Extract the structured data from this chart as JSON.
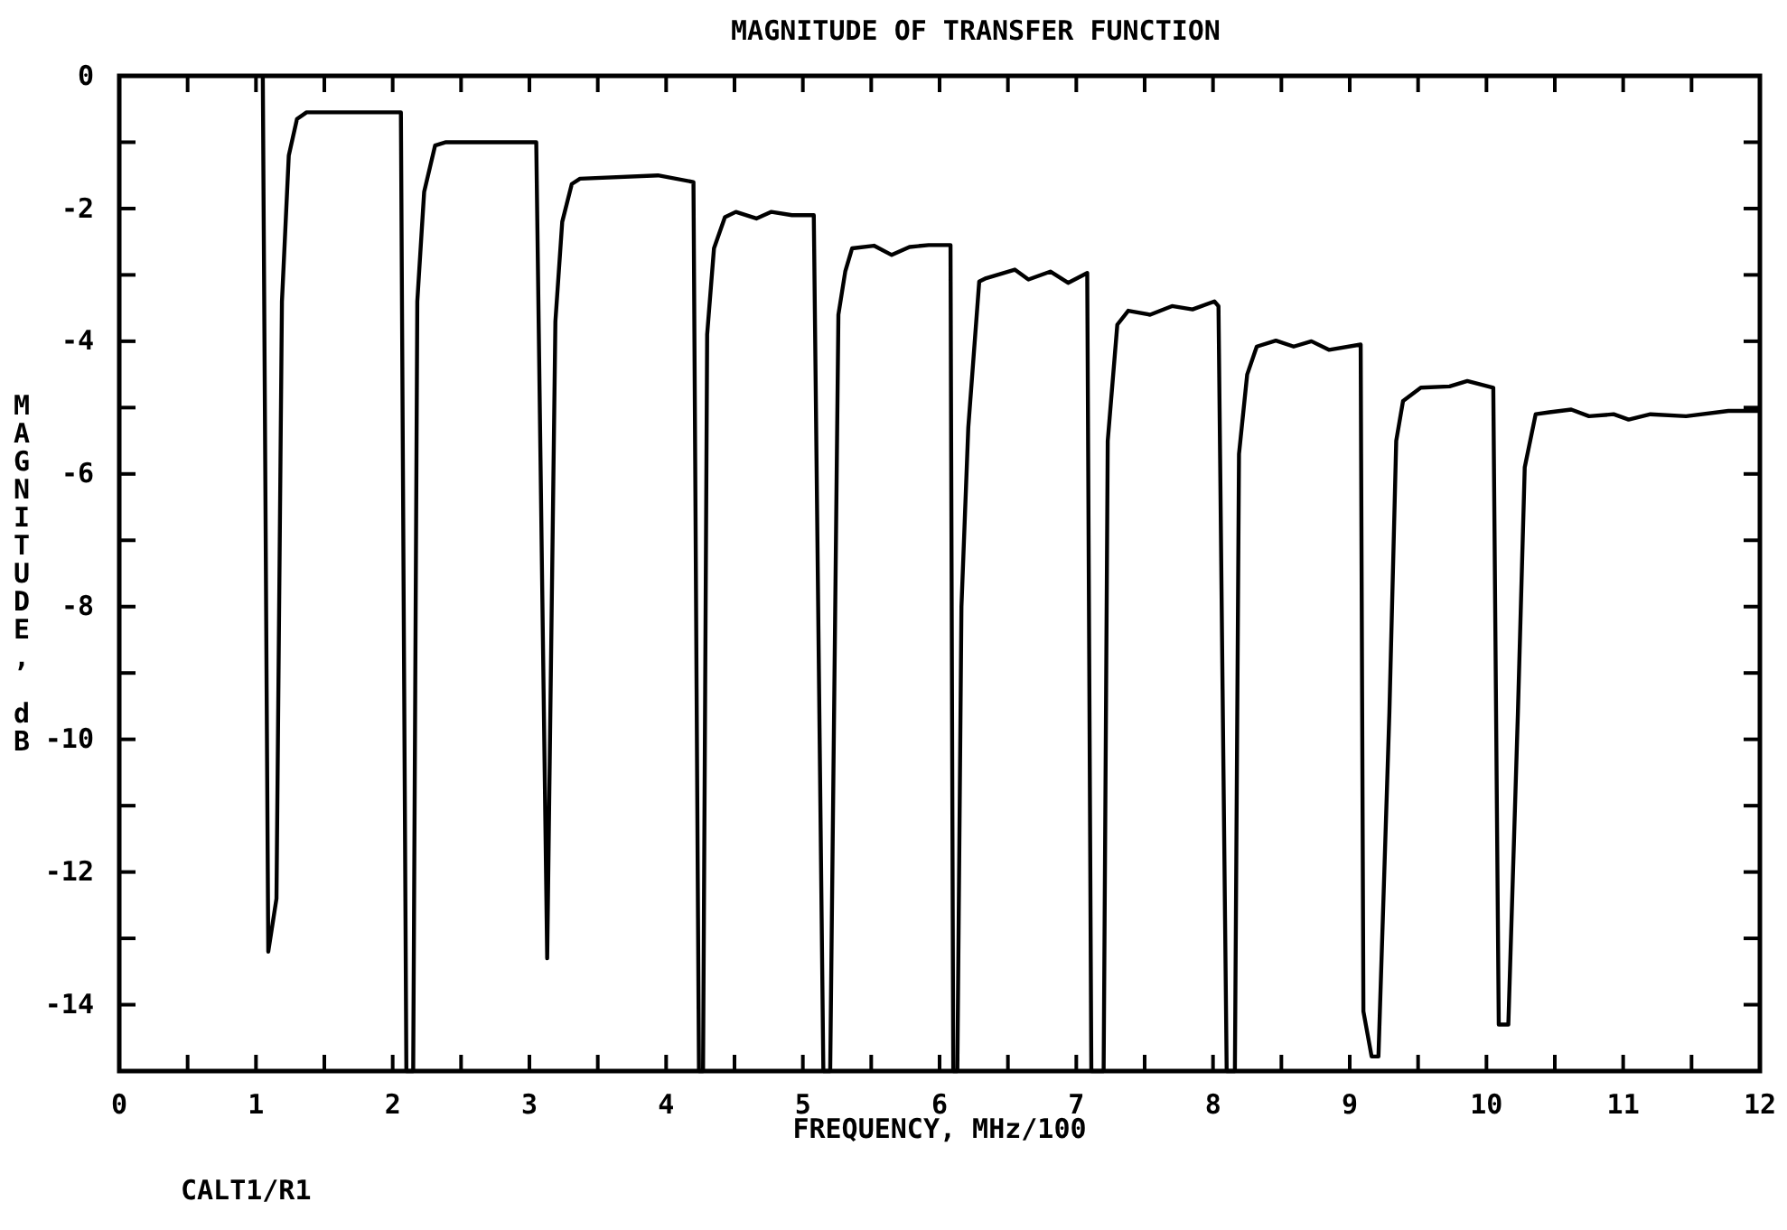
{
  "chart_data": {
    "type": "line",
    "title": "MAGNITUDE OF TRANSFER FUNCTION",
    "xlabel": "FREQUENCY, MHz/100",
    "ylabel": "MAGNITUDE, dB",
    "annotations": [
      "CALT1/R1"
    ],
    "xlim": [
      0,
      12
    ],
    "ylim": [
      -15,
      0
    ],
    "xticks": [
      0,
      {
        "value": 0.5,
        "label": null
      },
      1,
      {
        "value": 1.5,
        "label": null
      },
      2,
      {
        "value": 2.5,
        "label": null
      },
      3,
      {
        "value": 3.5,
        "label": null
      },
      4,
      {
        "value": 4.5,
        "label": null
      },
      5,
      {
        "value": 5.5,
        "label": null
      },
      6,
      {
        "value": 6.5,
        "label": null
      },
      7,
      {
        "value": 7.5,
        "label": null
      },
      8,
      {
        "value": 8.5,
        "label": null
      },
      9,
      {
        "value": 9.5,
        "label": null
      },
      10,
      {
        "value": 10.5,
        "label": null
      },
      11,
      {
        "value": 11.5,
        "label": null
      },
      12
    ],
    "yticks": [
      0,
      {
        "value": -1,
        "label": null
      },
      -2,
      {
        "value": -3,
        "label": null
      },
      -4,
      {
        "value": -5,
        "label": null
      },
      -6,
      {
        "value": -7,
        "label": null
      },
      -8,
      {
        "value": -9,
        "label": null
      },
      -10,
      {
        "value": -11,
        "label": null
      },
      -12,
      {
        "value": -13,
        "label": null
      },
      -14,
      {
        "value": -15,
        "label": null
      }
    ],
    "grid": false,
    "marker": "none",
    "line_style": "solid",
    "series": [
      {
        "color": "#000000",
        "x": [
          1.05,
          1.09,
          1.15,
          1.19,
          1.24,
          1.3,
          1.37,
          2.06,
          2.1,
          2.15,
          2.18,
          2.23,
          2.31,
          2.39,
          3.05,
          3.13,
          3.19,
          3.24,
          3.31,
          3.37,
          3.94,
          4.2,
          4.24,
          4.27,
          4.3,
          4.35,
          4.43,
          4.51,
          4.66,
          4.77,
          4.92,
          5.08,
          5.15,
          5.2,
          5.26,
          5.31,
          5.36,
          5.52,
          5.65,
          5.78,
          5.92,
          6.08,
          6.1,
          6.13,
          6.16,
          6.21,
          6.29,
          6.34,
          6.55,
          6.65,
          6.81,
          6.94,
          7.08,
          7.11,
          7.13,
          7.2,
          7.23,
          7.3,
          7.38,
          7.54,
          7.7,
          7.85,
          8.01,
          8.04,
          8.1,
          8.12,
          8.16,
          8.19,
          8.25,
          8.32,
          8.46,
          8.59,
          8.72,
          8.85,
          9.08,
          9.1,
          9.16,
          9.21,
          9.29,
          9.34,
          9.39,
          9.52,
          9.73,
          9.86,
          10.05,
          10.09,
          10.16,
          10.23,
          10.28,
          10.36,
          10.46,
          10.62,
          10.75,
          10.93,
          11.04,
          11.2,
          11.46,
          11.77,
          12
        ],
        "values": [
          0,
          -13.2,
          -12.4,
          -3.4,
          -1.2,
          -0.65,
          -0.55,
          -0.55,
          -15,
          -15,
          -3.4,
          -1.75,
          -1.05,
          -1.0,
          -1.0,
          -13.3,
          -3.7,
          -2.2,
          -1.63,
          -1.55,
          -1.5,
          -1.6,
          -15,
          -15,
          -3.9,
          -2.6,
          -2.13,
          -2.05,
          -2.15,
          -2.05,
          -2.1,
          -2.1,
          -15,
          -15,
          -3.6,
          -2.95,
          -2.6,
          -2.56,
          -2.7,
          -2.58,
          -2.55,
          -2.55,
          -15,
          -15,
          -8,
          -5.3,
          -3.1,
          -3.05,
          -2.92,
          -3.07,
          -2.95,
          -3.12,
          -2.97,
          -15,
          -15,
          -15,
          -5.5,
          -3.75,
          -3.54,
          -3.6,
          -3.47,
          -3.52,
          -3.4,
          -3.47,
          -15,
          -15,
          -15,
          -5.7,
          -4.5,
          -4.08,
          -3.99,
          -4.08,
          -4.0,
          -4.13,
          -4.05,
          -14.1,
          -14.78,
          -14.78,
          -9.6,
          -5.5,
          -4.9,
          -4.7,
          -4.68,
          -4.6,
          -4.7,
          -14.3,
          -14.3,
          -9.6,
          -5.9,
          -5.1,
          -5.07,
          -5.03,
          -5.13,
          -5.1,
          -5.18,
          -5.1,
          -5.13,
          -5.05,
          -5.05
        ]
      }
    ]
  }
}
